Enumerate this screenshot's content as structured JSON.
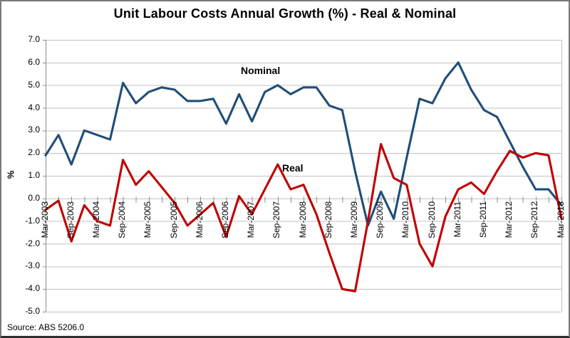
{
  "source_note": "Source: ABS 5206.0",
  "colors": {
    "nominal": "#1F4E79",
    "real": "#C00000",
    "gridline": "#C3C3C3",
    "axis": "#8C8C8C",
    "text": "#000000",
    "background": "#FFFFFF",
    "frame_border": "#7A7A7A"
  },
  "chart_data": {
    "type": "line",
    "title": "Unit Labour Costs Annual Growth (%) - Real & Nominal",
    "xlabel": "",
    "ylabel": "%",
    "ylim": [
      -5.0,
      7.0
    ],
    "ytick_step": 1.0,
    "grid": "horizontal",
    "legend_position": "inline-labels",
    "x_label_interval": 2,
    "categories": [
      "Mar-2003",
      "Jun-2003",
      "Sep-2003",
      "Dec-2003",
      "Mar-2004",
      "Jun-2004",
      "Sep-2004",
      "Dec-2004",
      "Mar-2005",
      "Jun-2005",
      "Sep-2005",
      "Dec-2005",
      "Mar-2006",
      "Jun-2006",
      "Sep-2006",
      "Dec-2006",
      "Mar-2007",
      "Jun-2007",
      "Sep-2007",
      "Dec-2007",
      "Mar-2008",
      "Jun-2008",
      "Sep-2008",
      "Dec-2008",
      "Mar-2009",
      "Jun-2009",
      "Sep-2009",
      "Dec-2009",
      "Mar-2010",
      "Jun-2010",
      "Sep-2010",
      "Dec-2010",
      "Mar-2011",
      "Jun-2011",
      "Sep-2011",
      "Dec-2011",
      "Mar-2012",
      "Jun-2012",
      "Sep-2012",
      "Dec-2012",
      "Mar-2013"
    ],
    "series": [
      {
        "name": "Nominal",
        "color": "#1F4E79",
        "values": [
          1.9,
          2.8,
          1.5,
          3.0,
          2.8,
          2.6,
          5.1,
          4.2,
          4.7,
          4.9,
          4.8,
          4.3,
          4.3,
          4.4,
          3.3,
          4.6,
          3.4,
          4.7,
          5.0,
          4.6,
          4.9,
          4.9,
          4.1,
          3.9,
          1.2,
          -1.2,
          0.3,
          -0.9,
          1.8,
          4.4,
          4.2,
          5.3,
          6.0,
          4.8,
          3.9,
          3.6,
          2.5,
          1.4,
          0.4,
          0.4,
          -0.3
        ]
      },
      {
        "name": "Real",
        "color": "#C00000",
        "values": [
          -0.5,
          -0.1,
          -1.9,
          -0.3,
          -1.0,
          -1.2,
          1.7,
          0.6,
          1.2,
          0.5,
          -0.2,
          -1.2,
          -0.7,
          -0.2,
          -1.7,
          0.1,
          -0.7,
          0.4,
          1.5,
          0.4,
          0.6,
          -0.7,
          -2.4,
          -4.0,
          -4.1,
          -1.0,
          2.4,
          0.9,
          0.6,
          -2.0,
          -3.0,
          -0.8,
          0.4,
          0.7,
          0.2,
          1.2,
          2.1,
          1.8,
          2.0,
          1.9,
          -0.9
        ]
      }
    ]
  }
}
